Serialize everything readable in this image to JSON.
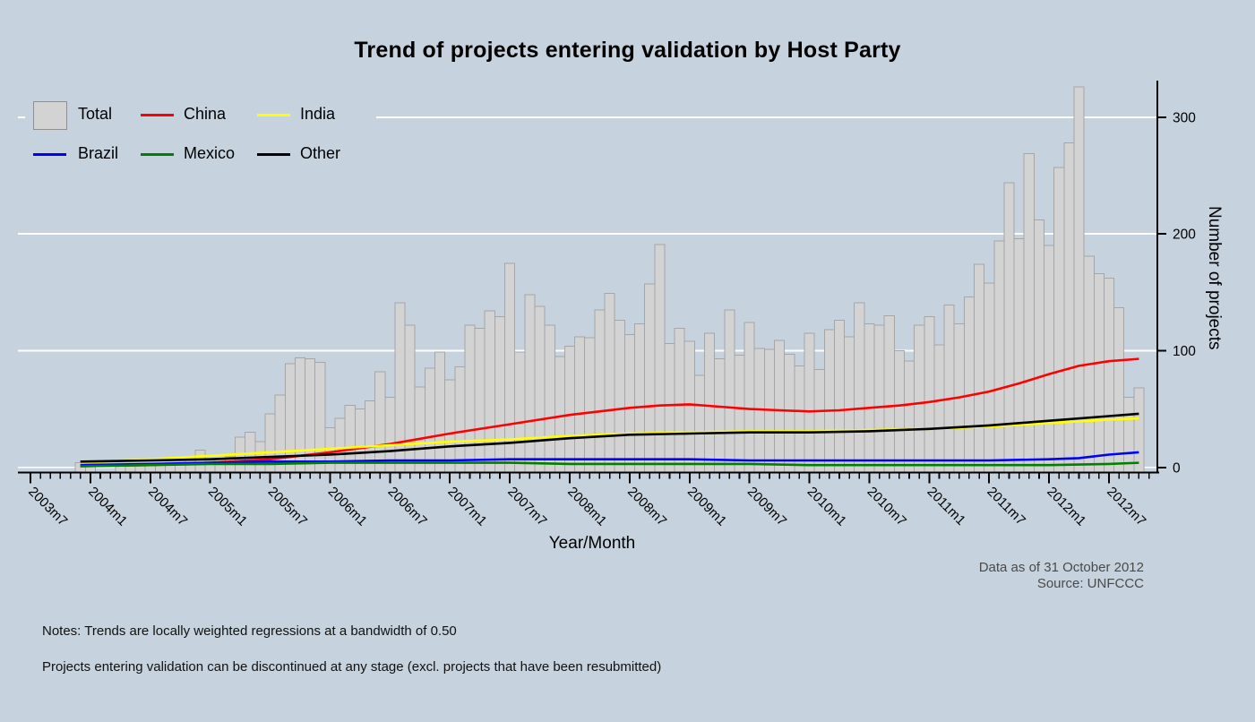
{
  "title": "Trend of projects entering validation by Host Party",
  "legend": {
    "items": [
      {
        "label": "Total",
        "swatch": "bar",
        "color": "#d3d3d3"
      },
      {
        "label": "China",
        "swatch": "line",
        "color": "#ff0000"
      },
      {
        "label": "India",
        "swatch": "line",
        "color": "#ffff00"
      },
      {
        "label": "Brazil",
        "swatch": "line",
        "color": "#0000ff"
      },
      {
        "label": "Mexico",
        "swatch": "line",
        "color": "#008000"
      },
      {
        "label": "Other",
        "swatch": "line",
        "color": "#000000"
      }
    ]
  },
  "annotations": {
    "data_asof": "Data as of 31 October 2012",
    "source": "Source: UNFCCC",
    "note1": "Notes: Trends are locally weighted regressions at a bandwidth of 0.50",
    "note2": "Projects entering validation can be discontinued at any stage (excl. projects that have been resubmitted)"
  },
  "chart_data": {
    "type": "bar",
    "title": "Trend of projects entering validation by Host Party",
    "xlabel": "Year/Month",
    "ylabel": "Number of projects",
    "ylim": [
      0,
      335
    ],
    "yticks": [
      0,
      100,
      200,
      300
    ],
    "grid": true,
    "grid_color": "#ffffff",
    "legend_position": "top-left",
    "x_start_month": "2003m7",
    "x_end_month": "2012m10",
    "x_major_tick_labels": [
      "2003m7",
      "2004m1",
      "2004m7",
      "2005m1",
      "2005m7",
      "2006m1",
      "2006m7",
      "2007m1",
      "2007m7",
      "2008m1",
      "2008m7",
      "2009m1",
      "2009m7",
      "2010m1",
      "2010m7",
      "2011m1",
      "2011m7",
      "2012m1",
      "2012m7"
    ],
    "months_per_major_tick": 6,
    "bar_series": {
      "name": "Total",
      "fill": "#d3d3d3",
      "stroke": "#a6a6a6",
      "note": "values are monthly counts starting 2003m7, ending 2012m10",
      "values": [
        0,
        0,
        0,
        0,
        0,
        4,
        3,
        0,
        0,
        2,
        2,
        3,
        3,
        3,
        4,
        4,
        6,
        15,
        6,
        8,
        9,
        26,
        30,
        22,
        46,
        62,
        89,
        94,
        93,
        90,
        34,
        42,
        53,
        50,
        57,
        82,
        60,
        141,
        122,
        69,
        85,
        99,
        75,
        86,
        122,
        119,
        134,
        129,
        175,
        99,
        148,
        138,
        122,
        95,
        104,
        112,
        111,
        135,
        149,
        126,
        114,
        123,
        157,
        191,
        106,
        119,
        108,
        79,
        115,
        93,
        135,
        96,
        124,
        102,
        101,
        109,
        97,
        87,
        115,
        84,
        118,
        126,
        112,
        141,
        123,
        122,
        130,
        100,
        91,
        122,
        129,
        105,
        139,
        123,
        146,
        174,
        158,
        194,
        244,
        196,
        269,
        212,
        190,
        257,
        278,
        326,
        181,
        166,
        162,
        137,
        60,
        68
      ]
    },
    "trend_series": [
      {
        "name": "China",
        "color": "#ff0000",
        "points": [
          [
            5,
            1
          ],
          [
            12,
            2
          ],
          [
            18,
            4
          ],
          [
            24,
            7
          ],
          [
            30,
            13
          ],
          [
            36,
            20
          ],
          [
            42,
            29
          ],
          [
            48,
            37
          ],
          [
            54,
            45
          ],
          [
            60,
            51
          ],
          [
            63,
            53
          ],
          [
            66,
            54
          ],
          [
            69,
            52
          ],
          [
            72,
            50
          ],
          [
            75,
            49
          ],
          [
            78,
            48
          ],
          [
            81,
            49
          ],
          [
            84,
            51
          ],
          [
            87,
            53
          ],
          [
            90,
            56
          ],
          [
            93,
            60
          ],
          [
            96,
            65
          ],
          [
            99,
            72
          ],
          [
            102,
            80
          ],
          [
            105,
            87
          ],
          [
            108,
            91
          ],
          [
            111,
            93
          ]
        ]
      },
      {
        "name": "India",
        "color": "#ffff00",
        "points": [
          [
            5,
            4
          ],
          [
            12,
            7
          ],
          [
            18,
            10
          ],
          [
            24,
            13
          ],
          [
            30,
            16
          ],
          [
            36,
            19
          ],
          [
            42,
            22
          ],
          [
            48,
            24
          ],
          [
            54,
            27
          ],
          [
            60,
            29
          ],
          [
            66,
            30
          ],
          [
            72,
            31
          ],
          [
            78,
            31
          ],
          [
            84,
            32
          ],
          [
            90,
            33
          ],
          [
            96,
            35
          ],
          [
            102,
            38
          ],
          [
            108,
            41
          ],
          [
            111,
            42
          ]
        ]
      },
      {
        "name": "Brazil",
        "color": "#0000ff",
        "points": [
          [
            5,
            2
          ],
          [
            12,
            3
          ],
          [
            18,
            4
          ],
          [
            24,
            5
          ],
          [
            30,
            5
          ],
          [
            36,
            6
          ],
          [
            42,
            6
          ],
          [
            48,
            7
          ],
          [
            54,
            7
          ],
          [
            60,
            7
          ],
          [
            66,
            7
          ],
          [
            72,
            6
          ],
          [
            78,
            6
          ],
          [
            84,
            6
          ],
          [
            90,
            6
          ],
          [
            96,
            6
          ],
          [
            102,
            7
          ],
          [
            105,
            8
          ],
          [
            108,
            11
          ],
          [
            111,
            13
          ]
        ]
      },
      {
        "name": "Mexico",
        "color": "#008000",
        "points": [
          [
            5,
            1
          ],
          [
            12,
            2
          ],
          [
            18,
            3
          ],
          [
            24,
            3
          ],
          [
            30,
            4
          ],
          [
            36,
            4
          ],
          [
            42,
            4
          ],
          [
            48,
            4
          ],
          [
            54,
            3
          ],
          [
            60,
            3
          ],
          [
            66,
            3
          ],
          [
            72,
            3
          ],
          [
            78,
            2
          ],
          [
            84,
            2
          ],
          [
            90,
            2
          ],
          [
            96,
            2
          ],
          [
            102,
            2
          ],
          [
            108,
            3
          ],
          [
            111,
            4
          ]
        ]
      },
      {
        "name": "Other",
        "color": "#000000",
        "points": [
          [
            5,
            5
          ],
          [
            12,
            6
          ],
          [
            18,
            7
          ],
          [
            24,
            9
          ],
          [
            30,
            11
          ],
          [
            36,
            14
          ],
          [
            42,
            18
          ],
          [
            48,
            21
          ],
          [
            54,
            25
          ],
          [
            60,
            28
          ],
          [
            66,
            29
          ],
          [
            72,
            30
          ],
          [
            78,
            30
          ],
          [
            84,
            31
          ],
          [
            90,
            33
          ],
          [
            96,
            36
          ],
          [
            102,
            40
          ],
          [
            108,
            44
          ],
          [
            111,
            46
          ]
        ]
      }
    ],
    "points_t_unit": "months since 2003m7"
  }
}
